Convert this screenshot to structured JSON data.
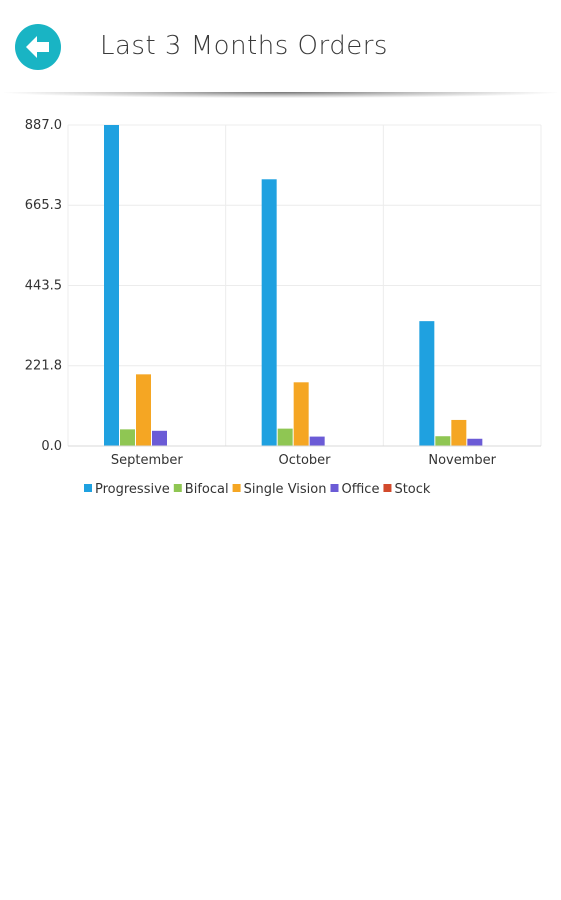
{
  "header": {
    "title": "Last 3 Months Orders",
    "back_icon": "arrow-left-icon",
    "accent_color": "#19b4c4"
  },
  "chart_data": {
    "type": "bar",
    "categories": [
      "September",
      "October",
      "November"
    ],
    "series": [
      {
        "name": "Progressive",
        "color": "#1fa1e0",
        "values": [
          887,
          737,
          345
        ]
      },
      {
        "name": "Bifocal",
        "color": "#8fc653",
        "values": [
          46,
          48,
          27
        ]
      },
      {
        "name": "Single Vision",
        "color": "#f5a623",
        "values": [
          198,
          176,
          72
        ]
      },
      {
        "name": "Office",
        "color": "#6b5bd6",
        "values": [
          42,
          26,
          20
        ]
      },
      {
        "name": "Stock",
        "color": "#d24a2c",
        "values": [
          0,
          0,
          0
        ]
      }
    ],
    "y_ticks": [
      "0.0",
      "221.8",
      "443.5",
      "665.3",
      "887.0"
    ],
    "ylim": [
      0,
      887
    ],
    "grid": true,
    "legend_position": "bottom"
  }
}
